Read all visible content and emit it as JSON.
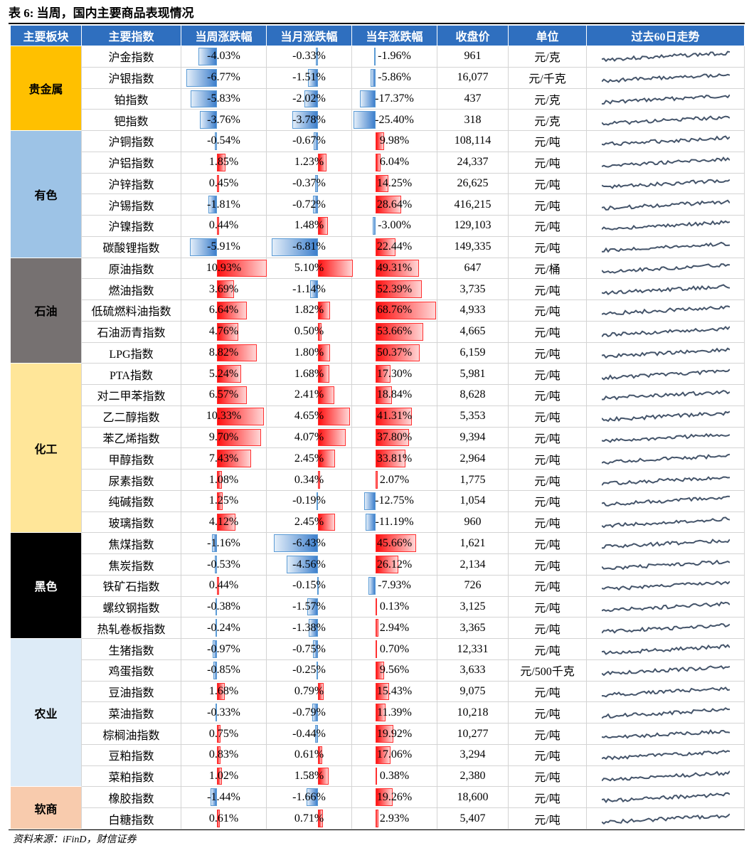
{
  "title": "表 6: 当周，国内主要商品表现情况",
  "header": [
    "主要板块",
    "主要指数",
    "当周涨跌幅",
    "当月涨跌幅",
    "当年涨跌幅",
    "收盘价",
    "单位",
    "过去60日走势"
  ],
  "groups": [
    {
      "name": "贵金属",
      "rows": [
        [
          "沪金指数",
          "-4.03%",
          "-0.33%",
          "-1.96%",
          "961",
          "元/克"
        ],
        [
          "沪银指数",
          "-6.77%",
          "-1.51%",
          "-5.86%",
          "16,077",
          "元/千克"
        ],
        [
          "铂指数",
          "-5.83%",
          "-2.02%",
          "-17.37%",
          "437",
          "元/克"
        ],
        [
          "钯指数",
          "-3.76%",
          "-3.78%",
          "-25.40%",
          "318",
          "元/克"
        ]
      ]
    },
    {
      "name": "有色",
      "rows": [
        [
          "沪铜指数",
          "-0.54%",
          "-0.67%",
          "9.98%",
          "108,114",
          "元/吨"
        ],
        [
          "沪铝指数",
          "1.85%",
          "1.23%",
          "6.04%",
          "24,337",
          "元/吨"
        ],
        [
          "沪锌指数",
          "0.45%",
          "-0.37%",
          "14.25%",
          "26,625",
          "元/吨"
        ],
        [
          "沪锡指数",
          "-1.81%",
          "-0.72%",
          "28.64%",
          "416,215",
          "元/吨"
        ],
        [
          "沪镍指数",
          "0.44%",
          "1.48%",
          "-3.00%",
          "129,103",
          "元/吨"
        ],
        [
          "碳酸锂指数",
          "-5.91%",
          "-6.81%",
          "22.44%",
          "149,335",
          "元/吨"
        ]
      ]
    },
    {
      "name": "石油",
      "rows": [
        [
          "原油指数",
          "10.93%",
          "5.10%",
          "49.31%",
          "647",
          "元/桶"
        ],
        [
          "燃油指数",
          "3.69%",
          "-1.14%",
          "52.39%",
          "3,735",
          "元/吨"
        ],
        [
          "低硫燃料油指数",
          "6.64%",
          "1.82%",
          "68.76%",
          "4,933",
          "元/吨"
        ],
        [
          "石油沥青指数",
          "4.76%",
          "0.50%",
          "53.66%",
          "4,665",
          "元/吨"
        ],
        [
          "LPG指数",
          "8.82%",
          "1.80%",
          "50.37%",
          "6,159",
          "元/吨"
        ]
      ]
    },
    {
      "name": "化工",
      "rows": [
        [
          "PTA指数",
          "5.24%",
          "1.68%",
          "17.30%",
          "5,981",
          "元/吨"
        ],
        [
          "对二甲苯指数",
          "6.57%",
          "2.41%",
          "18.84%",
          "8,628",
          "元/吨"
        ],
        [
          "乙二醇指数",
          "10.33%",
          "4.65%",
          "41.31%",
          "5,353",
          "元/吨"
        ],
        [
          "苯乙烯指数",
          "9.70%",
          "4.07%",
          "37.80%",
          "9,394",
          "元/吨"
        ],
        [
          "甲醇指数",
          "7.43%",
          "2.45%",
          "33.81%",
          "2,964",
          "元/吨"
        ],
        [
          "尿素指数",
          "1.08%",
          "0.34%",
          "2.07%",
          "1,775",
          "元/吨"
        ],
        [
          "纯碱指数",
          "1.25%",
          "-0.19%",
          "-12.75%",
          "1,054",
          "元/吨"
        ],
        [
          "玻璃指数",
          "4.12%",
          "2.45%",
          "-11.19%",
          "960",
          "元/吨"
        ]
      ]
    },
    {
      "name": "黑色",
      "rows": [
        [
          "焦煤指数",
          "-1.16%",
          "-6.43%",
          "45.66%",
          "1,621",
          "元/吨"
        ],
        [
          "焦炭指数",
          "-0.53%",
          "-4.56%",
          "26.12%",
          "2,134",
          "元/吨"
        ],
        [
          "铁矿石指数",
          "0.44%",
          "-0.15%",
          "-7.93%",
          "726",
          "元/吨"
        ],
        [
          "螺纹钢指数",
          "-0.38%",
          "-1.57%",
          "0.13%",
          "3,125",
          "元/吨"
        ],
        [
          "热轧卷板指数",
          "-0.24%",
          "-1.38%",
          "2.94%",
          "3,365",
          "元/吨"
        ]
      ]
    },
    {
      "name": "农业",
      "rows": [
        [
          "生猪指数",
          "-0.97%",
          "-0.75%",
          "0.70%",
          "12,331",
          "元/吨"
        ],
        [
          "鸡蛋指数",
          "-0.85%",
          "-0.25%",
          "9.56%",
          "3,633",
          "元/500千克"
        ],
        [
          "豆油指数",
          "1.68%",
          "0.79%",
          "15.43%",
          "9,075",
          "元/吨"
        ],
        [
          "菜油指数",
          "-0.33%",
          "-0.79%",
          "11.39%",
          "10,218",
          "元/吨"
        ],
        [
          "棕榈油指数",
          "0.75%",
          "-0.44%",
          "19.92%",
          "10,277",
          "元/吨"
        ],
        [
          "豆粕指数",
          "0.83%",
          "0.61%",
          "17.06%",
          "3,294",
          "元/吨"
        ],
        [
          "菜粕指数",
          "1.02%",
          "1.58%",
          "0.38%",
          "2,380",
          "元/吨"
        ]
      ]
    },
    {
      "name": "软商",
      "rows": [
        [
          "橡胶指数",
          "-1.44%",
          "-1.66%",
          "19.26%",
          "18,600",
          "元/吨"
        ],
        [
          "白糖指数",
          "0.61%",
          "0.71%",
          "2.93%",
          "5,407",
          "元/吨"
        ]
      ]
    }
  ],
  "source": "资料来源：iFinD，财信证券"
}
